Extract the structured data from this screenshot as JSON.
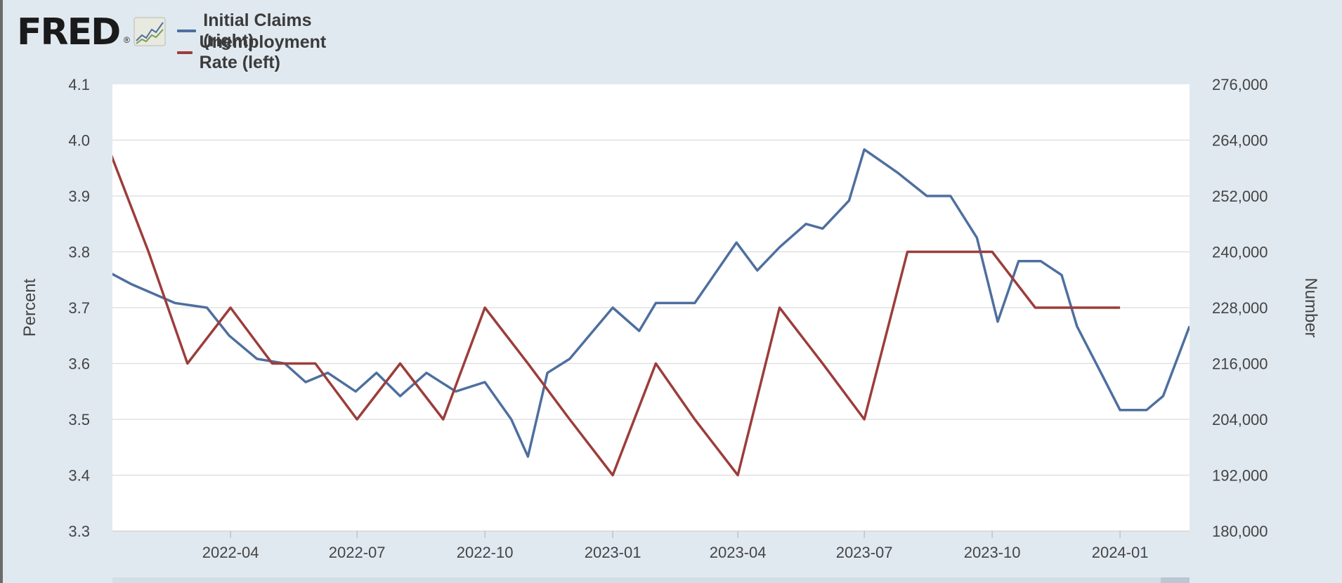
{
  "brand": {
    "logo_text": "FRED",
    "reg_mark": "®"
  },
  "legend": [
    {
      "label": "Initial Claims (right)",
      "color": "#4e6f9f"
    },
    {
      "label": "Unemployment Rate (left)",
      "color": "#9c3d3b"
    }
  ],
  "colors": {
    "background": "#e1e9f0",
    "plot_bg": "#ffffff",
    "grid": "#dcdcdc"
  },
  "chart_data": {
    "type": "line",
    "title": "",
    "xlabel": "",
    "ylabel_left": "Percent",
    "ylabel_right": "Number",
    "grid": true,
    "legend_placement": "top-left",
    "x_tick_labels": [
      "2022-04",
      "2022-07",
      "2022-10",
      "2023-01",
      "2023-04",
      "2023-07",
      "2023-10",
      "2024-01"
    ],
    "x_range": [
      "2022-01-06",
      "2024-02-20"
    ],
    "ylim_left": [
      3.3,
      4.1
    ],
    "yticks_left": [
      "3.3",
      "3.4",
      "3.5",
      "3.6",
      "3.7",
      "3.8",
      "3.9",
      "4.0",
      "4.1"
    ],
    "ylim_right": [
      180000,
      276000
    ],
    "yticks_right": [
      "180,000",
      "192,000",
      "204,000",
      "216,000",
      "228,000",
      "240,000",
      "252,000",
      "264,000",
      "276,000"
    ],
    "series": [
      {
        "name": "Initial Claims (right)",
        "axis": "right",
        "color": "#4e6f9f",
        "x": [
          "2022-01-01",
          "2022-01-20",
          "2022-02-20",
          "2022-03-15",
          "2022-03-31",
          "2022-04-20",
          "2022-05-10",
          "2022-05-25",
          "2022-06-10",
          "2022-06-30",
          "2022-07-15",
          "2022-08-01",
          "2022-08-20",
          "2022-09-10",
          "2022-10-01",
          "2022-10-20",
          "2022-11-01",
          "2022-11-15",
          "2022-12-01",
          "2023-01-01",
          "2023-01-20",
          "2023-02-01",
          "2023-03-01",
          "2023-03-31",
          "2023-04-15",
          "2023-05-01",
          "2023-05-20",
          "2023-06-01",
          "2023-06-20",
          "2023-07-01",
          "2023-07-25",
          "2023-08-15",
          "2023-09-01",
          "2023-09-20",
          "2023-10-05",
          "2023-10-20",
          "2023-11-05",
          "2023-11-20",
          "2023-12-01",
          "2023-12-20",
          "2024-01-01",
          "2024-01-20",
          "2024-02-01",
          "2024-02-20"
        ],
        "values": [
          236000,
          233000,
          229000,
          228000,
          222000,
          217000,
          216000,
          212000,
          214000,
          210000,
          214000,
          209000,
          214000,
          210000,
          212000,
          204000,
          196000,
          214000,
          217000,
          228000,
          223000,
          229000,
          229000,
          242000,
          236000,
          241000,
          246000,
          245000,
          251000,
          262000,
          257000,
          252000,
          252000,
          243000,
          225000,
          238000,
          238000,
          235000,
          224000,
          213000,
          206000,
          206000,
          209000,
          224000
        ]
      },
      {
        "name": "Unemployment Rate (left)",
        "axis": "left",
        "color": "#9c3d3b",
        "x": [
          "2022-01-01",
          "2022-02-01",
          "2022-03-01",
          "2022-04-01",
          "2022-05-01",
          "2022-06-01",
          "2022-07-01",
          "2022-08-01",
          "2022-09-01",
          "2022-10-01",
          "2022-11-01",
          "2022-12-01",
          "2023-01-01",
          "2023-02-01",
          "2023-03-01",
          "2023-04-01",
          "2023-05-01",
          "2023-06-01",
          "2023-07-01",
          "2023-08-01",
          "2023-09-01",
          "2023-10-01",
          "2023-11-01",
          "2023-12-01",
          "2024-01-01"
        ],
        "values": [
          4.0,
          3.8,
          3.6,
          3.7,
          3.6,
          3.6,
          3.5,
          3.6,
          3.5,
          3.7,
          3.6,
          3.5,
          3.4,
          3.6,
          3.5,
          3.4,
          3.7,
          3.6,
          3.5,
          3.8,
          3.8,
          3.8,
          3.7,
          3.7,
          3.7
        ]
      }
    ]
  }
}
